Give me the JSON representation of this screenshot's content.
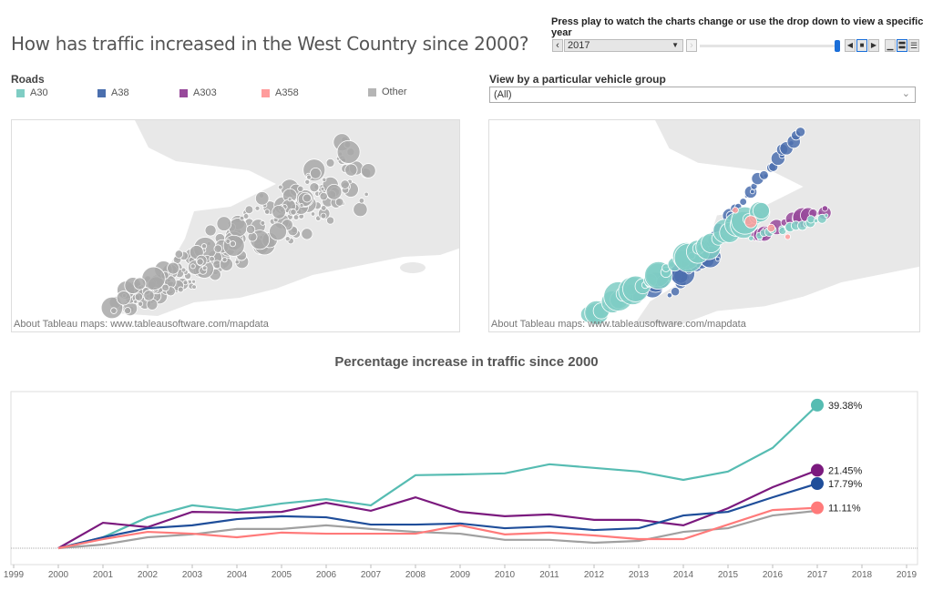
{
  "title": "How has traffic increased in the West Country since 2000?",
  "controls": {
    "instruction": "Press play to watch the charts change or use the drop down to view a specific year",
    "year": "2017",
    "slider_fraction": 1.0,
    "icons": [
      "prev-icon",
      "next-icon",
      "play-back-icon",
      "stop-icon",
      "play-forward-icon",
      "speed-slow-icon",
      "speed-medium-icon",
      "speed-fast-icon"
    ]
  },
  "legend": {
    "title": "Roads",
    "items": [
      {
        "label": "A30",
        "color": "#7fcdc4"
      },
      {
        "label": "A38",
        "color": "#4b6fae"
      },
      {
        "label": "A303",
        "color": "#984a9b"
      },
      {
        "label": "A358",
        "color": "#ff9c9c"
      },
      {
        "label": "Other",
        "color": "#b5b5b5"
      }
    ]
  },
  "vehicle_group": {
    "label": "View by a particular vehicle group",
    "value": "(All)"
  },
  "maps": {
    "attribution": "About Tableau maps: www.tableausoftware.com/mapdata"
  },
  "chart_data": {
    "type": "line",
    "title": "Percentage increase in traffic since 2000",
    "x": [
      2000,
      2001,
      2002,
      2003,
      2004,
      2005,
      2006,
      2007,
      2008,
      2009,
      2010,
      2011,
      2012,
      2013,
      2014,
      2015,
      2016,
      2017
    ],
    "xticks": [
      "1999",
      "2000",
      "2001",
      "2002",
      "2003",
      "2004",
      "2005",
      "2006",
      "2007",
      "2008",
      "2009",
      "2010",
      "2011",
      "2012",
      "2013",
      "2014",
      "2015",
      "2016",
      "2017",
      "2018",
      "2019"
    ],
    "xlim": [
      1999,
      2019
    ],
    "series": [
      {
        "road": "A30",
        "color": "#56bcb2",
        "values": [
          0,
          3.0,
          8.5,
          11.8,
          10.5,
          12.3,
          13.5,
          11.8,
          20.1,
          20.3,
          20.6,
          23.1,
          22.1,
          21.1,
          18.8,
          21.1,
          27.6,
          39.38
        ],
        "end_label": "39.38%"
      },
      {
        "road": "A303",
        "color": "#7b1a7e",
        "values": [
          0,
          7.0,
          5.8,
          10.0,
          9.8,
          10.0,
          12.5,
          10.3,
          14.0,
          10.0,
          8.8,
          9.3,
          7.8,
          7.8,
          6.3,
          11.0,
          16.8,
          21.45
        ],
        "end_label": "21.45%"
      },
      {
        "road": "A38",
        "color": "#1f4e9a",
        "values": [
          0,
          3.0,
          5.5,
          6.3,
          8.0,
          8.8,
          8.5,
          6.5,
          6.5,
          6.8,
          5.5,
          6.0,
          5.0,
          5.5,
          9.0,
          10.0,
          14.0,
          17.79
        ],
        "end_label": "17.79%"
      },
      {
        "road": "Other",
        "color": "#a0a0a0",
        "values": [
          0,
          1.0,
          3.0,
          3.8,
          5.3,
          5.3,
          6.3,
          5.3,
          4.5,
          4.0,
          2.3,
          2.3,
          1.5,
          2.0,
          4.5,
          5.5,
          9.0,
          10.3
        ],
        "end_label": ""
      },
      {
        "road": "A358",
        "color": "#ff7a7a",
        "values": [
          0,
          2.5,
          4.5,
          4.0,
          3.0,
          4.3,
          4.0,
          4.0,
          4.0,
          6.3,
          3.8,
          4.3,
          3.5,
          2.5,
          2.5,
          6.5,
          10.5,
          11.11
        ],
        "end_label": "11.11%"
      }
    ],
    "grid": false,
    "legend": "none"
  }
}
